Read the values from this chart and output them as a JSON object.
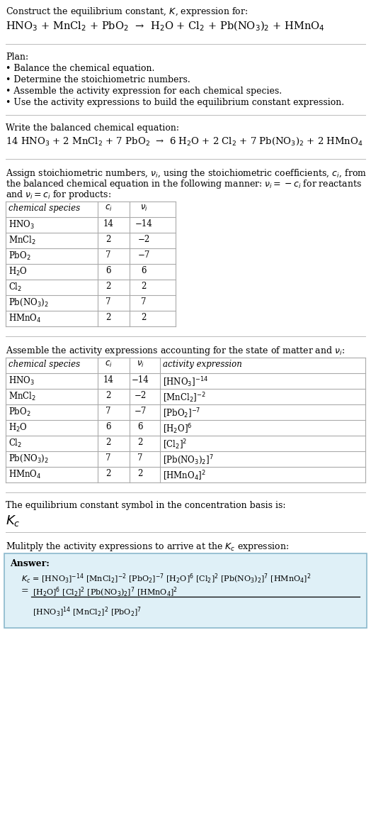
{
  "title_line1": "Construct the equilibrium constant, $K$, expression for:",
  "reaction_unbalanced": "HNO$_3$ + MnCl$_2$ + PbO$_2$  →  H$_2$O + Cl$_2$ + Pb(NO$_3$)$_2$ + HMnO$_4$",
  "plan_header": "Plan:",
  "plan_bullets": [
    "• Balance the chemical equation.",
    "• Determine the stoichiometric numbers.",
    "• Assemble the activity expression for each chemical species.",
    "• Use the activity expressions to build the equilibrium constant expression."
  ],
  "balanced_header": "Write the balanced chemical equation:",
  "reaction_balanced": "14 HNO$_3$ + 2 MnCl$_2$ + 7 PbO$_2$  →  6 H$_2$O + 2 Cl$_2$ + 7 Pb(NO$_3$)$_2$ + 2 HMnO$_4$",
  "stoich_header1": "Assign stoichiometric numbers, $\\nu_i$, using the stoichiometric coefficients, $c_i$, from",
  "stoich_header2": "the balanced chemical equation in the following manner: $\\nu_i = -c_i$ for reactants",
  "stoich_header3": "and $\\nu_i = c_i$ for products:",
  "table1_headers": [
    "chemical species",
    "$c_i$",
    "$\\nu_i$"
  ],
  "table1_rows": [
    [
      "HNO$_3$",
      "14",
      "−14"
    ],
    [
      "MnCl$_2$",
      "2",
      "−2"
    ],
    [
      "PbO$_2$",
      "7",
      "−7"
    ],
    [
      "H$_2$O",
      "6",
      "6"
    ],
    [
      "Cl$_2$",
      "2",
      "2"
    ],
    [
      "Pb(NO$_3$)$_2$",
      "7",
      "7"
    ],
    [
      "HMnO$_4$",
      "2",
      "2"
    ]
  ],
  "activity_header": "Assemble the activity expressions accounting for the state of matter and $\\nu_i$:",
  "table2_headers": [
    "chemical species",
    "$c_i$",
    "$\\nu_i$",
    "activity expression"
  ],
  "table2_rows": [
    [
      "HNO$_3$",
      "14",
      "−14",
      "[HNO$_3$]$^{-14}$"
    ],
    [
      "MnCl$_2$",
      "2",
      "−2",
      "[MnCl$_2$]$^{-2}$"
    ],
    [
      "PbO$_2$",
      "7",
      "−7",
      "[PbO$_2$]$^{-7}$"
    ],
    [
      "H$_2$O",
      "6",
      "6",
      "[H$_2$O]$^6$"
    ],
    [
      "Cl$_2$",
      "2",
      "2",
      "[Cl$_2$]$^2$"
    ],
    [
      "Pb(NO$_3$)$_2$",
      "7",
      "7",
      "[Pb(NO$_3$)$_2$]$^7$"
    ],
    [
      "HMnO$_4$",
      "2",
      "2",
      "[HMnO$_4$]$^2$"
    ]
  ],
  "kc_header": "The equilibrium constant symbol in the concentration basis is:",
  "kc_symbol": "$K_c$",
  "multiply_header": "Mulitply the activity expressions to arrive at the $K_c$ expression:",
  "answer_label": "Answer:",
  "answer_line1": "$K_c$ = [HNO$_3$]$^{-14}$ [MnCl$_2$]$^{-2}$ [PbO$_2$]$^{-7}$ [H$_2$O]$^6$ [Cl$_2$]$^2$ [Pb(NO$_3$)$_2$]$^7$ [HMnO$_4$]$^2$",
  "answer_eq": "=",
  "answer_line2_num": "[H$_2$O]$^6$ [Cl$_2$]$^2$ [Pb(NO$_3$)$_2$]$^7$ [HMnO$_4$]$^2$",
  "answer_line2_den": "[HNO$_3$]$^{14}$ [MnCl$_2$]$^2$ [PbO$_2$]$^7$",
  "bg_color": "#ffffff",
  "answer_box_color": "#dff0f7",
  "answer_box_border": "#8ab8cc",
  "text_color": "#000000",
  "table_border_color": "#aaaaaa",
  "separator_color": "#bbbbbb"
}
